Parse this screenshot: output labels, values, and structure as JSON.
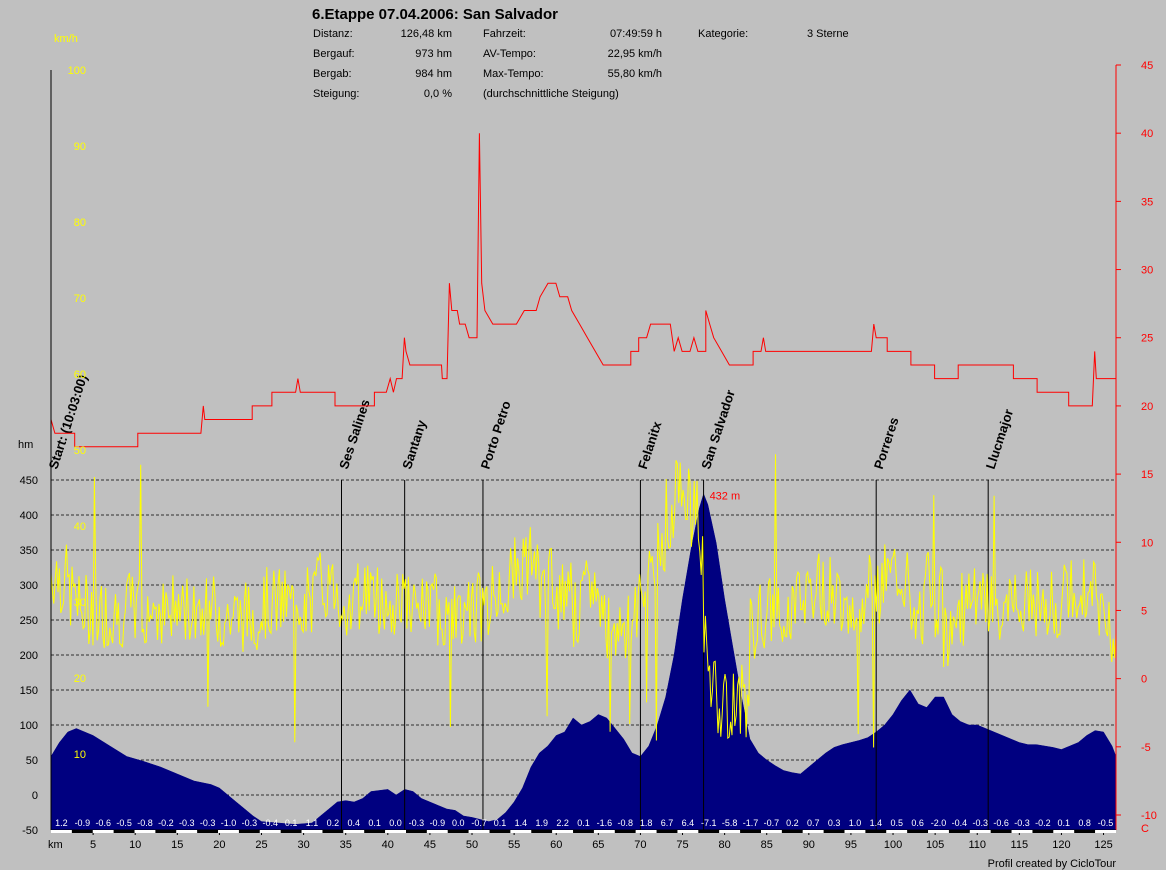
{
  "header": {
    "title": "6.Etappe 07.04.2006: San Salvador",
    "stats": [
      {
        "label": "Distanz:",
        "value": "126,48 km"
      },
      {
        "label": "Bergauf:",
        "value": "973 hm"
      },
      {
        "label": "Bergab:",
        "value": "984 hm"
      },
      {
        "label": "Steigung:",
        "value": "0,0 %"
      },
      {
        "label": "Fahrzeit:",
        "value": "07:49:59 h"
      },
      {
        "label": "AV-Tempo:",
        "value": "22,95 km/h"
      },
      {
        "label": "Max-Tempo:",
        "value": "55,80 km/h"
      },
      {
        "label": "(durchschnittliche Steigung)",
        "value": ""
      },
      {
        "label": "Kategorie:",
        "value": "3 Sterne"
      }
    ]
  },
  "credit": "Profil created by CicloTour",
  "colors": {
    "background": "#c0c0c0",
    "altitude_fill": "#000080",
    "speed_line": "#ff0000",
    "grade_line": "#ffff00",
    "speed_axis_text": "#ffff00",
    "grade_axis_text": "#ff0000",
    "waypoint_line": "#000000"
  },
  "chart_data": {
    "type": "area",
    "x": {
      "label": "km",
      "ticks": [
        5,
        10,
        15,
        20,
        25,
        30,
        35,
        40,
        45,
        50,
        55,
        60,
        65,
        70,
        75,
        80,
        85,
        90,
        95,
        100,
        105,
        110,
        115,
        120,
        125
      ],
      "range": [
        0,
        126.48
      ]
    },
    "altitude": {
      "axis_label": "hm",
      "ticks": [
        -50,
        0,
        50,
        100,
        150,
        200,
        250,
        300,
        350,
        400,
        450
      ],
      "range": [
        -50,
        450
      ],
      "max_label": "432 m",
      "points": [
        [
          0,
          55
        ],
        [
          1,
          75
        ],
        [
          2,
          90
        ],
        [
          3,
          95
        ],
        [
          5,
          85
        ],
        [
          7,
          70
        ],
        [
          9,
          55
        ],
        [
          11,
          48
        ],
        [
          13,
          40
        ],
        [
          15,
          30
        ],
        [
          17,
          20
        ],
        [
          19,
          15
        ],
        [
          20,
          10
        ],
        [
          21,
          0
        ],
        [
          22,
          -10
        ],
        [
          23,
          -20
        ],
        [
          24,
          -30
        ],
        [
          25,
          -38
        ],
        [
          27,
          -40
        ],
        [
          29,
          -42
        ],
        [
          31,
          -40
        ],
        [
          32,
          -30
        ],
        [
          33,
          -20
        ],
        [
          34,
          -10
        ],
        [
          35,
          -8
        ],
        [
          36,
          -10
        ],
        [
          37,
          -5
        ],
        [
          38,
          5
        ],
        [
          40,
          8
        ],
        [
          41,
          0
        ],
        [
          42,
          8
        ],
        [
          43,
          5
        ],
        [
          44,
          -5
        ],
        [
          45,
          -10
        ],
        [
          46,
          -15
        ],
        [
          47,
          -20
        ],
        [
          48,
          -22
        ],
        [
          49,
          -30
        ],
        [
          50,
          -32
        ],
        [
          51,
          -35
        ],
        [
          52,
          -38
        ],
        [
          53,
          -35
        ],
        [
          54,
          -25
        ],
        [
          55,
          -10
        ],
        [
          56,
          10
        ],
        [
          57,
          40
        ],
        [
          58,
          60
        ],
        [
          59,
          70
        ],
        [
          60,
          85
        ],
        [
          61,
          90
        ],
        [
          62,
          110
        ],
        [
          63,
          100
        ],
        [
          64,
          105
        ],
        [
          65,
          115
        ],
        [
          66,
          110
        ],
        [
          67,
          95
        ],
        [
          68,
          80
        ],
        [
          69,
          60
        ],
        [
          70,
          55
        ],
        [
          71,
          70
        ],
        [
          72,
          100
        ],
        [
          73,
          140
        ],
        [
          74,
          200
        ],
        [
          75,
          280
        ],
        [
          76,
          350
        ],
        [
          77,
          410
        ],
        [
          77.5,
          430
        ],
        [
          78,
          415
        ],
        [
          79,
          360
        ],
        [
          80,
          280
        ],
        [
          81,
          210
        ],
        [
          82,
          140
        ],
        [
          83,
          80
        ],
        [
          84,
          60
        ],
        [
          85,
          50
        ],
        [
          86,
          42
        ],
        [
          87,
          35
        ],
        [
          88,
          32
        ],
        [
          89,
          30
        ],
        [
          90,
          40
        ],
        [
          91,
          50
        ],
        [
          92,
          60
        ],
        [
          93,
          68
        ],
        [
          94,
          72
        ],
        [
          95,
          75
        ],
        [
          96,
          78
        ],
        [
          97,
          82
        ],
        [
          98,
          90
        ],
        [
          99,
          100
        ],
        [
          100,
          115
        ],
        [
          101,
          135
        ],
        [
          102,
          150
        ],
        [
          103,
          130
        ],
        [
          104,
          125
        ],
        [
          105,
          140
        ],
        [
          106,
          140
        ],
        [
          107,
          115
        ],
        [
          108,
          105
        ],
        [
          109,
          100
        ],
        [
          110,
          100
        ],
        [
          111,
          95
        ],
        [
          112,
          90
        ],
        [
          113,
          85
        ],
        [
          114,
          80
        ],
        [
          115,
          75
        ],
        [
          116,
          72
        ],
        [
          117,
          72
        ],
        [
          118,
          70
        ],
        [
          119,
          68
        ],
        [
          120,
          65
        ],
        [
          121,
          70
        ],
        [
          122,
          75
        ],
        [
          123,
          85
        ],
        [
          124,
          92
        ],
        [
          125,
          90
        ],
        [
          126,
          70
        ],
        [
          126.48,
          55
        ]
      ]
    },
    "speed": {
      "axis_label": "km/h",
      "ticks": [
        10,
        20,
        30,
        40,
        50,
        60,
        70,
        80,
        90,
        100
      ],
      "range": [
        0,
        100
      ],
      "points": [
        [
          0,
          19
        ],
        [
          0.3,
          18
        ],
        [
          5,
          18
        ],
        [
          5,
          17
        ],
        [
          12,
          17
        ],
        [
          12,
          18
        ],
        [
          19.5,
          18
        ],
        [
          19.5,
          19
        ],
        [
          26.5,
          19
        ],
        [
          26.5,
          20
        ],
        [
          29.5,
          20
        ],
        [
          29.5,
          21
        ],
        [
          31,
          21
        ],
        [
          31,
          22
        ],
        [
          35,
          22
        ],
        [
          35,
          22
        ],
        [
          35,
          22
        ],
        [
          36,
          22
        ],
        [
          36,
          22
        ],
        [
          36.5,
          22
        ],
        [
          36.5,
          22
        ],
        [
          37,
          22
        ],
        [
          37,
          22
        ],
        [
          37,
          22
        ],
        [
          37,
          22
        ],
        [
          37,
          22
        ],
        [
          37,
          22
        ],
        [
          37,
          22
        ],
        [
          37,
          22
        ],
        [
          37,
          22
        ],
        [
          37,
          22
        ],
        [
          37,
          22
        ],
        [
          37,
          22
        ],
        [
          37,
          22
        ],
        [
          37,
          22
        ],
        [
          37,
          22
        ],
        [
          37,
          22
        ],
        [
          37,
          22
        ],
        [
          37,
          22
        ],
        [
          37,
          22
        ],
        [
          37,
          22
        ],
        [
          37,
          22
        ],
        [
          37,
          22
        ]
      ]
    },
    "grade": {
      "axis_label": "",
      "ticks": [
        -10,
        -5,
        0,
        5,
        10,
        15,
        20,
        25,
        30,
        35,
        40,
        45
      ],
      "range": [
        -13,
        45
      ],
      "axis_end_label": "C"
    },
    "waypoints": [
      {
        "name": "Start: (10:03:00)",
        "km": 0
      },
      {
        "name": "Ses Salines",
        "km": 34.5
      },
      {
        "name": "Santany",
        "km": 42
      },
      {
        "name": "Porto Petro",
        "km": 51.3
      },
      {
        "name": "Felanitx",
        "km": 70
      },
      {
        "name": "San Salvador",
        "km": 77.5
      },
      {
        "name": "Porreres",
        "km": 98
      },
      {
        "name": "Llucmajor",
        "km": 111.3
      }
    ],
    "segment_grades": [
      "1.2",
      "-0.9",
      "-0.6",
      "-0.5",
      "-0.8",
      "-0.2",
      "-0.3",
      "-0.3",
      "-1.0",
      "-0.3",
      "-0.4",
      "0.1",
      "1.1",
      "0.2",
      "0.4",
      "0.1",
      "0.0",
      "-0.3",
      "-0.9",
      "0.0",
      "-0.7",
      "0.1",
      "1.4",
      "1.9",
      "2.2",
      "0.1",
      "-1.6",
      "-0.8",
      "1.8",
      "6.7",
      "6.4",
      "-7.1",
      "-5.8",
      "-1.7",
      "-0.7",
      "0.2",
      "0.7",
      "0.3",
      "1.0",
      "1.4",
      "0.5",
      "0.6",
      "-2.0",
      "-0.4",
      "-0.3",
      "-0.6",
      "-0.3",
      "-0.2",
      "0.1",
      "0.8",
      "-0.5"
    ]
  }
}
